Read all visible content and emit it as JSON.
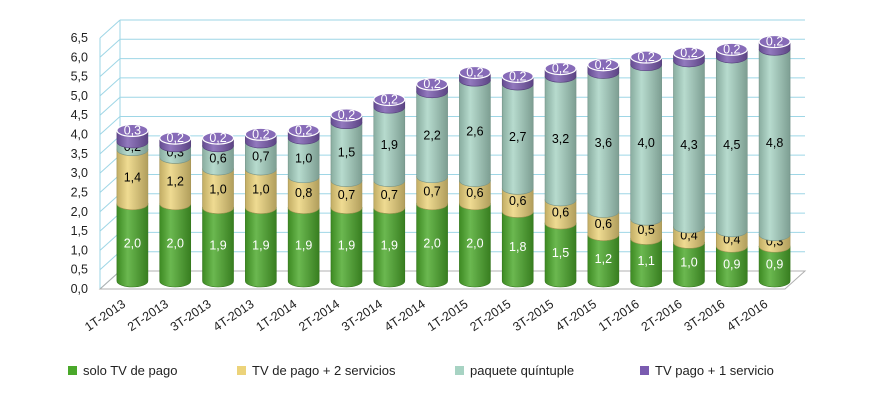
{
  "chart_data": {
    "type": "bar",
    "stacked": true,
    "categories": [
      "1T-2013",
      "2T-2013",
      "3T-2013",
      "4T-2013",
      "1T-2014",
      "2T-2014",
      "3T-2014",
      "4T-2014",
      "1T-2015",
      "2T-2015",
      "3T-2015",
      "4T-2015",
      "1T-2016",
      "2T-2016",
      "3T-2016",
      "4T-2016"
    ],
    "series": [
      {
        "name": "solo TV de pago",
        "color": "#4aa82a",
        "label_color": "#ffffff",
        "values": [
          2.0,
          2.0,
          1.9,
          1.9,
          1.9,
          1.9,
          1.9,
          2.0,
          2.0,
          1.8,
          1.5,
          1.2,
          1.1,
          1.0,
          0.9,
          0.9
        ],
        "labels": [
          "2,0",
          "2,0",
          "1,9",
          "1,9",
          "1,9",
          "1,9",
          "1,9",
          "2,0",
          "2,0",
          "1,8",
          "1,5",
          "1,2",
          "1,1",
          "1,0",
          "0,9",
          "0,9"
        ]
      },
      {
        "name": "TV de pago + 2 servicios",
        "color": "#ecd37a",
        "label_color": "#000000",
        "values": [
          1.4,
          1.2,
          1.0,
          1.0,
          0.8,
          0.7,
          0.7,
          0.7,
          0.6,
          0.6,
          0.6,
          0.6,
          0.5,
          0.4,
          0.4,
          0.3
        ],
        "labels": [
          "1,4",
          "1,2",
          "1,0",
          "1,0",
          "0,8",
          "0,7",
          "0,7",
          "0,7",
          "0,6",
          "0,6",
          "0,6",
          "0,6",
          "0,5",
          "0,4",
          "0,4",
          "0,3"
        ]
      },
      {
        "name": "paquete quíntuple",
        "color": "#a7d3c3",
        "label_color": "#000000",
        "values": [
          0.2,
          0.3,
          0.6,
          0.7,
          1.0,
          1.5,
          1.9,
          2.2,
          2.6,
          2.7,
          3.2,
          3.6,
          4.0,
          4.3,
          4.5,
          4.8
        ],
        "labels": [
          "0,2",
          "0,3",
          "0,6",
          "0,7",
          "1,0",
          "1,5",
          "1,9",
          "2,2",
          "2,6",
          "2,7",
          "3,2",
          "3,6",
          "4,0",
          "4,3",
          "4,5",
          "4,8"
        ]
      },
      {
        "name": "TV pago + 1 servicio",
        "color": "#7a5bb0",
        "label_color": "#ffffff",
        "values": [
          0.3,
          0.2,
          0.2,
          0.2,
          0.2,
          0.2,
          0.2,
          0.2,
          0.2,
          0.2,
          0.2,
          0.2,
          0.2,
          0.2,
          0.2,
          0.2
        ],
        "labels": [
          "0,3",
          "0,2",
          "0,2",
          "0,2",
          "0,2",
          "0,2",
          "0,2",
          "0,2",
          "0,2",
          "0,2",
          "0,2",
          "0,2",
          "0,2",
          "0,2",
          "0,2",
          "0,2"
        ]
      }
    ],
    "ylim": [
      0,
      6.5
    ],
    "yticks": [
      "0,0",
      "0,5",
      "1,0",
      "1,5",
      "2,0",
      "2,5",
      "3,0",
      "3,5",
      "4,0",
      "4,5",
      "5,0",
      "5,5",
      "6,0",
      "6,5"
    ],
    "grid": true,
    "legend_position": "bottom",
    "title": "",
    "xlabel": "",
    "ylabel": ""
  }
}
